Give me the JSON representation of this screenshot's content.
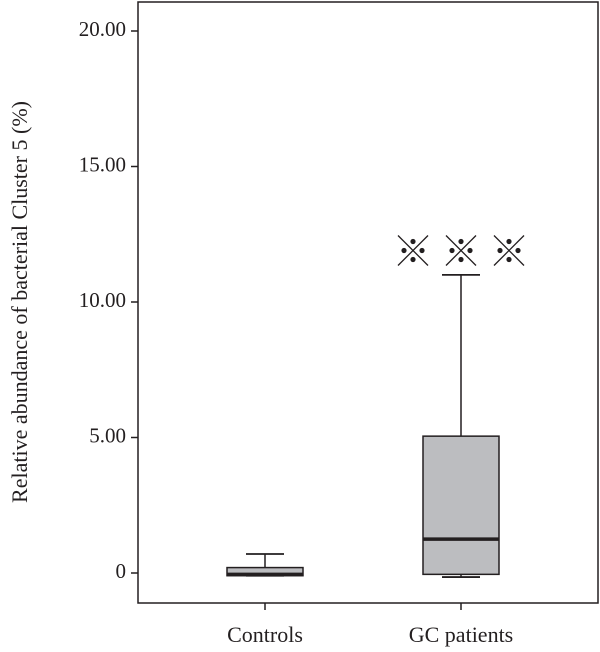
{
  "chart_data": {
    "type": "box",
    "ylabel": "Relative abundance of bacterial Cluster 5 (%)",
    "xlabel": "",
    "ylim": [
      -1.1,
      21.0
    ],
    "yticks": [
      0,
      5.0,
      10.0,
      15.0,
      20.0
    ],
    "ytick_labels": [
      "0",
      "5.00",
      "10.00",
      "15.00",
      "20.00"
    ],
    "categories": [
      "Controls",
      "GC patients"
    ],
    "boxes": [
      {
        "category": "Controls",
        "min": -0.1,
        "q1": -0.1,
        "median": -0.05,
        "q3": 0.2,
        "max": 0.7
      },
      {
        "category": "GC patients",
        "min": -0.15,
        "q1": -0.05,
        "median": 1.25,
        "q3": 5.05,
        "max": 11.0
      }
    ],
    "outlier_markers": [
      {
        "category": "GC patients",
        "y": 11.9,
        "symbol": "※",
        "count": 3
      }
    ],
    "box_fill": "#bcbdc0",
    "line_color": "#231f20"
  }
}
